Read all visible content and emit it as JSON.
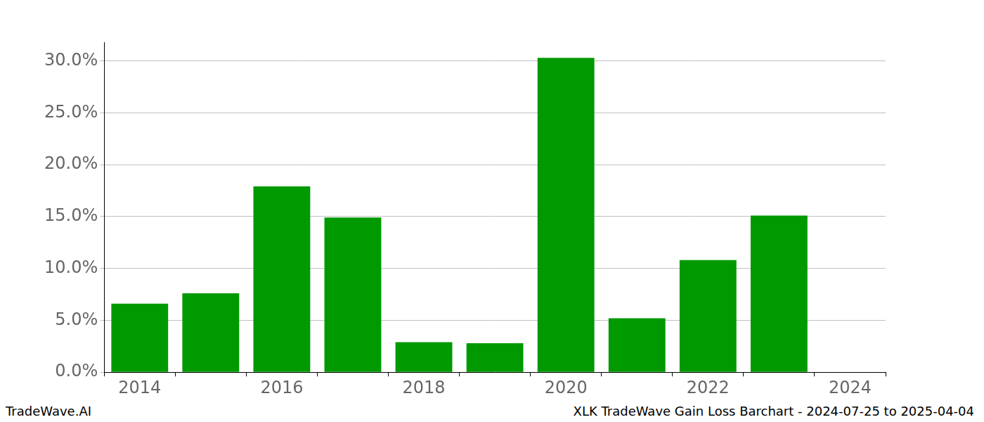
{
  "chart_data": {
    "type": "bar",
    "categories": [
      "2014",
      null,
      "2016",
      null,
      "2018",
      null,
      "2020",
      null,
      "2022",
      null,
      "2024"
    ],
    "values": [
      6.6,
      7.6,
      17.9,
      14.9,
      2.9,
      2.8,
      30.3,
      5.2,
      10.8,
      15.1,
      null
    ],
    "color": "#009900",
    "ylim": [
      0,
      31.8
    ],
    "yticks": [
      {
        "value": 0,
        "label": "0.0%"
      },
      {
        "value": 5,
        "label": "5.0%"
      },
      {
        "value": 10,
        "label": "10.0%"
      },
      {
        "value": 15,
        "label": "15.0%"
      },
      {
        "value": 20,
        "label": "20.0%"
      },
      {
        "value": 25,
        "label": "25.0%"
      },
      {
        "value": 30,
        "label": "30.0%"
      }
    ],
    "grid": true,
    "annotations": [
      "TradeWave.AI",
      "XLK TradeWave Gain Loss Barchart - 2024-07-25 to 2025-04-04"
    ]
  }
}
